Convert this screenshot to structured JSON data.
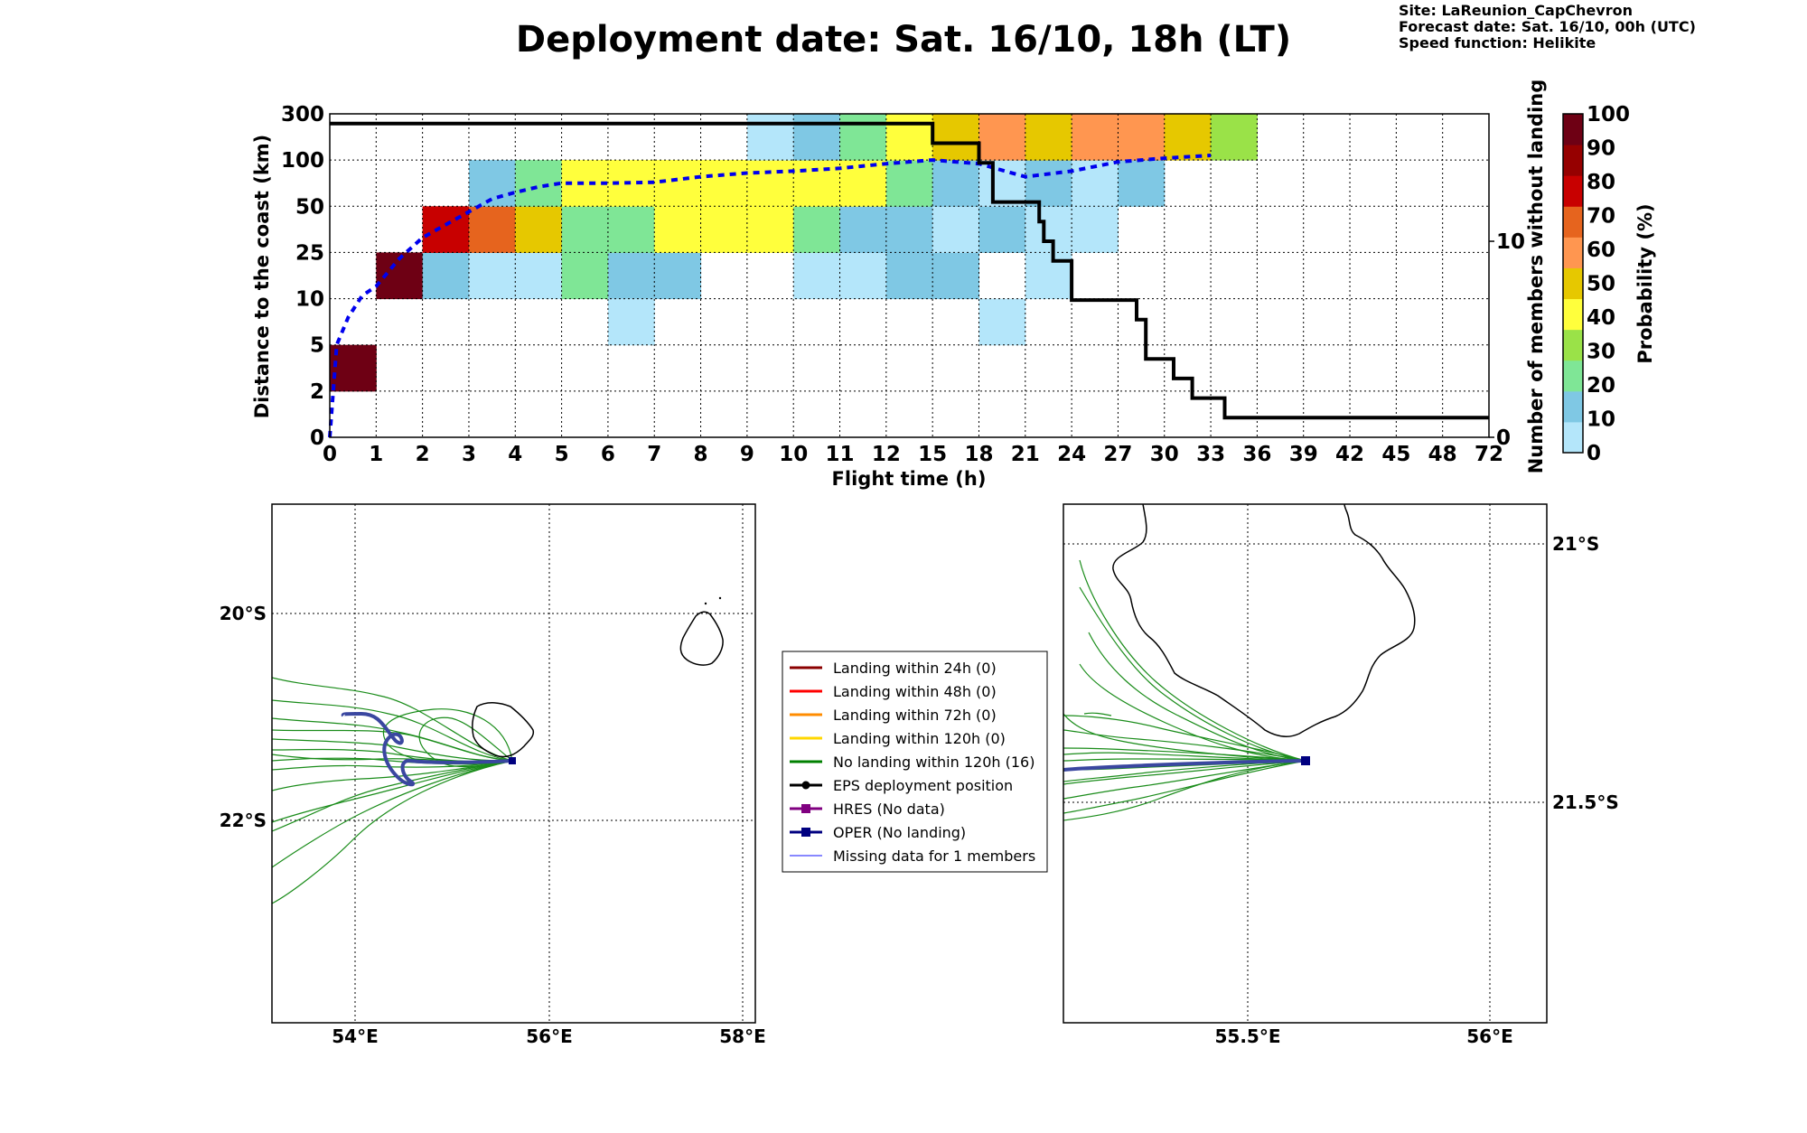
{
  "header": {
    "title": "Deployment date: Sat. 16/10, 18h (LT)",
    "site": "Site: LaReunion_CapChevron",
    "forecast": "Forecast date: Sat. 16/10, 00h (UTC)",
    "speed": "Speed function: Helikite"
  },
  "chart_data": [
    {
      "type": "heatmap",
      "xlabel": "Flight time (h)",
      "ylabel": "Distance to the coast (km)",
      "y2label": "Number of members without landing",
      "colorbar_label": "Probability (%)",
      "x_ticks": [
        "0",
        "1",
        "2",
        "3",
        "4",
        "5",
        "6",
        "7",
        "8",
        "9",
        "10",
        "11",
        "12",
        "15",
        "18",
        "21",
        "24",
        "27",
        "30",
        "33",
        "36",
        "39",
        "42",
        "45",
        "48",
        "72"
      ],
      "y_ticks": [
        "0",
        "2",
        "5",
        "10",
        "25",
        "50",
        "100",
        "300"
      ],
      "y2_ticks": [
        "0",
        "10"
      ],
      "colorbar_ticks": [
        "0",
        "10",
        "20",
        "30",
        "40",
        "50",
        "60",
        "70",
        "80",
        "90",
        "100"
      ],
      "colorbar_colors": [
        "#b4e6fa",
        "#7fc8e4",
        "#7fe696",
        "#9ae248",
        "#ffff3c",
        "#e6c800",
        "#ff9650",
        "#e6641e",
        "#c80000",
        "#960000",
        "#6e0014"
      ],
      "cells": [
        {
          "col": 0,
          "row": 1,
          "p": 100
        },
        {
          "col": 1,
          "row": 3,
          "p": 100
        },
        {
          "col": 2,
          "row": 3,
          "p": 10
        },
        {
          "col": 3,
          "row": 3,
          "p": 0
        },
        {
          "col": 4,
          "row": 3,
          "p": 0
        },
        {
          "col": 5,
          "row": 3,
          "p": 20
        },
        {
          "col": 6,
          "row": 3,
          "p": 10
        },
        {
          "col": 7,
          "row": 3,
          "p": 10
        },
        {
          "col": 10,
          "row": 3,
          "p": 0
        },
        {
          "col": 11,
          "row": 3,
          "p": 0
        },
        {
          "col": 12,
          "row": 3,
          "p": 10
        },
        {
          "col": 13,
          "row": 3,
          "p": 10
        },
        {
          "col": 15,
          "row": 3,
          "p": 0
        },
        {
          "col": 6,
          "row": 2,
          "p": 0
        },
        {
          "col": 14,
          "row": 2,
          "p": 0
        },
        {
          "col": 2,
          "row": 4,
          "p": 80
        },
        {
          "col": 3,
          "row": 4,
          "p": 70
        },
        {
          "col": 4,
          "row": 4,
          "p": 50
        },
        {
          "col": 5,
          "row": 4,
          "p": 20
        },
        {
          "col": 6,
          "row": 4,
          "p": 20
        },
        {
          "col": 7,
          "row": 4,
          "p": 40
        },
        {
          "col": 8,
          "row": 4,
          "p": 40
        },
        {
          "col": 9,
          "row": 4,
          "p": 40
        },
        {
          "col": 10,
          "row": 4,
          "p": 20
        },
        {
          "col": 11,
          "row": 4,
          "p": 10
        },
        {
          "col": 12,
          "row": 4,
          "p": 10
        },
        {
          "col": 13,
          "row": 4,
          "p": 0
        },
        {
          "col": 14,
          "row": 4,
          "p": 10
        },
        {
          "col": 15,
          "row": 4,
          "p": 0
        },
        {
          "col": 16,
          "row": 4,
          "p": 0
        },
        {
          "col": 3,
          "row": 5,
          "p": 10
        },
        {
          "col": 4,
          "row": 5,
          "p": 20
        },
        {
          "col": 5,
          "row": 5,
          "p": 40
        },
        {
          "col": 6,
          "row": 5,
          "p": 40
        },
        {
          "col": 7,
          "row": 5,
          "p": 40
        },
        {
          "col": 8,
          "row": 5,
          "p": 40
        },
        {
          "col": 9,
          "row": 5,
          "p": 40
        },
        {
          "col": 10,
          "row": 5,
          "p": 40
        },
        {
          "col": 11,
          "row": 5,
          "p": 40
        },
        {
          "col": 12,
          "row": 5,
          "p": 20
        },
        {
          "col": 13,
          "row": 5,
          "p": 10
        },
        {
          "col": 14,
          "row": 5,
          "p": 0
        },
        {
          "col": 15,
          "row": 5,
          "p": 10
        },
        {
          "col": 16,
          "row": 5,
          "p": 0
        },
        {
          "col": 17,
          "row": 5,
          "p": 10
        },
        {
          "col": 9,
          "row": 6,
          "p": 0
        },
        {
          "col": 10,
          "row": 6,
          "p": 10
        },
        {
          "col": 11,
          "row": 6,
          "p": 20
        },
        {
          "col": 12,
          "row": 6,
          "p": 40
        },
        {
          "col": 13,
          "row": 6,
          "p": 50
        },
        {
          "col": 14,
          "row": 6,
          "p": 60
        },
        {
          "col": 15,
          "row": 6,
          "p": 50
        },
        {
          "col": 16,
          "row": 6,
          "p": 60
        },
        {
          "col": 17,
          "row": 6,
          "p": 60
        },
        {
          "col": 18,
          "row": 6,
          "p": 50
        },
        {
          "col": 19,
          "row": 6,
          "p": 30
        }
      ],
      "series": [
        {
          "name": "mean distance",
          "style": "dashed-blue",
          "x": [
            0,
            0.15,
            0.4,
            0.7,
            1,
            1.5,
            2,
            2.5,
            3,
            3.5,
            4,
            4.5,
            5,
            6,
            7,
            8,
            9,
            10,
            11,
            12,
            13,
            14,
            15,
            16,
            17,
            18,
            19
          ],
          "y": [
            0,
            5,
            8,
            11,
            14,
            23,
            33,
            40,
            47,
            58,
            65,
            71,
            75,
            75,
            76,
            82,
            86,
            88,
            91,
            96,
            100,
            96,
            82,
            88,
            98,
            108,
            120
          ]
        },
        {
          "name": "members without landing",
          "style": "step-black",
          "x": [
            0,
            13,
            13,
            14,
            14,
            14.3,
            14.3,
            15.3,
            15.3,
            15.4,
            15.4,
            15.6,
            15.6,
            16,
            16,
            17.4,
            17.4,
            17.6,
            17.6,
            18.2,
            18.2,
            18.6,
            18.6,
            19.3,
            19.3,
            25
          ],
          "y": [
            16,
            16,
            15,
            15,
            14,
            14,
            12,
            12,
            11,
            11,
            10,
            10,
            9,
            9,
            7,
            7,
            6,
            6,
            4,
            4,
            3,
            3,
            2,
            2,
            1,
            1
          ],
          "y2_range": [
            0,
            16.5
          ]
        }
      ]
    },
    {
      "type": "map",
      "x_ticks": [
        "54°E",
        "56°E",
        "58°E"
      ],
      "y_ticks": [
        "20°S",
        "22°S"
      ]
    },
    {
      "type": "map",
      "x_ticks": [
        "55.5°E",
        "56°E"
      ],
      "y_ticks": [
        "21°S",
        "21.5°S"
      ]
    }
  ],
  "legend": {
    "items": [
      {
        "label": "Landing within 24h (0)",
        "color": "#8b0000",
        "marker": "none"
      },
      {
        "label": "Landing within 48h (0)",
        "color": "#ff0000",
        "marker": "none"
      },
      {
        "label": "Landing within 72h (0)",
        "color": "#ff8c00",
        "marker": "none"
      },
      {
        "label": "Landing within 120h (0)",
        "color": "#ffd700",
        "marker": "none"
      },
      {
        "label": "No landing within 120h (16)",
        "color": "#008000",
        "marker": "none"
      },
      {
        "label": "EPS deployment position",
        "color": "#000000",
        "marker": "circle"
      },
      {
        "label": "HRES (No data)",
        "color": "#800080",
        "marker": "square"
      },
      {
        "label": "OPER (No landing)",
        "color": "#000080",
        "marker": "square"
      },
      {
        "label": "Missing data for 1 members",
        "color": "#4040ff",
        "marker": "thin"
      }
    ]
  }
}
